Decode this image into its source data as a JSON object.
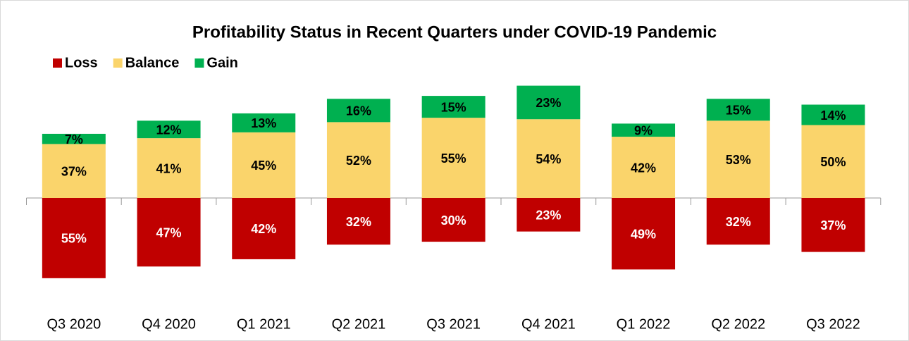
{
  "chart_data": {
    "type": "diverging_bar",
    "title": "Profitability Status in Recent Quarters under COVID-19 Pandemic",
    "categories": [
      "Q3 2020",
      "Q4 2020",
      "Q1 2021",
      "Q2 2021",
      "Q3 2021",
      "Q4 2021",
      "Q1 2022",
      "Q2 2022",
      "Q3 2022"
    ],
    "series": [
      {
        "name": "Loss",
        "color": "#c00000",
        "values": [
          55,
          47,
          42,
          32,
          30,
          23,
          49,
          32,
          37
        ],
        "value_labels": [
          "55%",
          "47%",
          "42%",
          "32%",
          "30%",
          "23%",
          "49%",
          "32%",
          "37%"
        ]
      },
      {
        "name": "Balance",
        "color": "#fad46b",
        "values": [
          37,
          41,
          45,
          52,
          55,
          54,
          42,
          53,
          50
        ],
        "value_labels": [
          "37%",
          "41%",
          "45%",
          "52%",
          "55%",
          "54%",
          "42%",
          "53%",
          "50%"
        ]
      },
      {
        "name": "Gain",
        "color": "#00b050",
        "values": [
          7,
          12,
          13,
          16,
          15,
          23,
          9,
          15,
          14
        ],
        "value_labels": [
          "7%",
          "12%",
          "13%",
          "16%",
          "15%",
          "23%",
          "9%",
          "15%",
          "14%"
        ]
      }
    ]
  }
}
